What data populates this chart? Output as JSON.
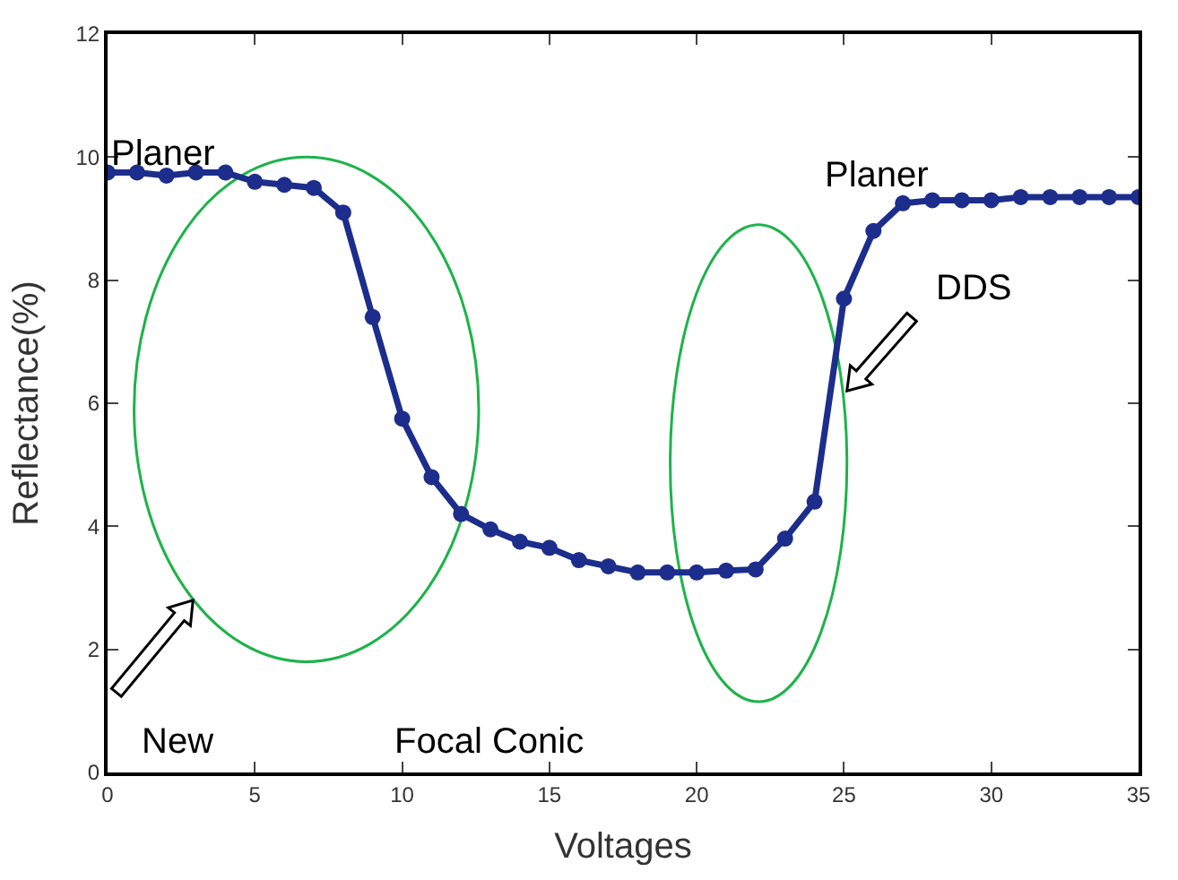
{
  "chart_data": {
    "type": "line",
    "xlabel": "Voltages",
    "ylabel": "Reflectance(%)",
    "x": [
      0,
      1,
      2,
      3,
      4,
      5,
      6,
      7,
      8,
      9,
      10,
      11,
      12,
      13,
      14,
      15,
      16,
      17,
      18,
      19,
      20,
      21,
      22,
      23,
      24,
      25,
      26,
      27,
      28,
      29,
      30,
      31,
      32,
      33,
      34,
      35
    ],
    "series": [
      {
        "color": "#1c2d8c",
        "values": [
          9.75,
          9.75,
          9.7,
          9.75,
          9.75,
          9.6,
          9.55,
          9.5,
          9.1,
          7.4,
          5.75,
          4.8,
          4.2,
          3.95,
          3.75,
          3.65,
          3.45,
          3.35,
          3.25,
          3.25,
          3.25,
          3.28,
          3.3,
          3.8,
          4.4,
          7.7,
          8.8,
          9.25,
          9.3,
          9.3,
          9.3,
          9.35,
          9.35,
          9.35,
          9.35,
          9.35
        ]
      }
    ],
    "xlim": [
      0,
      35
    ],
    "xticks": [
      0,
      5,
      10,
      15,
      20,
      25,
      30,
      35
    ],
    "ylim": [
      0,
      12
    ],
    "yticks": [
      0,
      2,
      4,
      6,
      8,
      10,
      12
    ],
    "marker": "circle",
    "line_style": "solid",
    "grid": false,
    "annotations": [
      "Planer",
      "Planer",
      "DDS",
      "New",
      "Focal Conic"
    ]
  }
}
